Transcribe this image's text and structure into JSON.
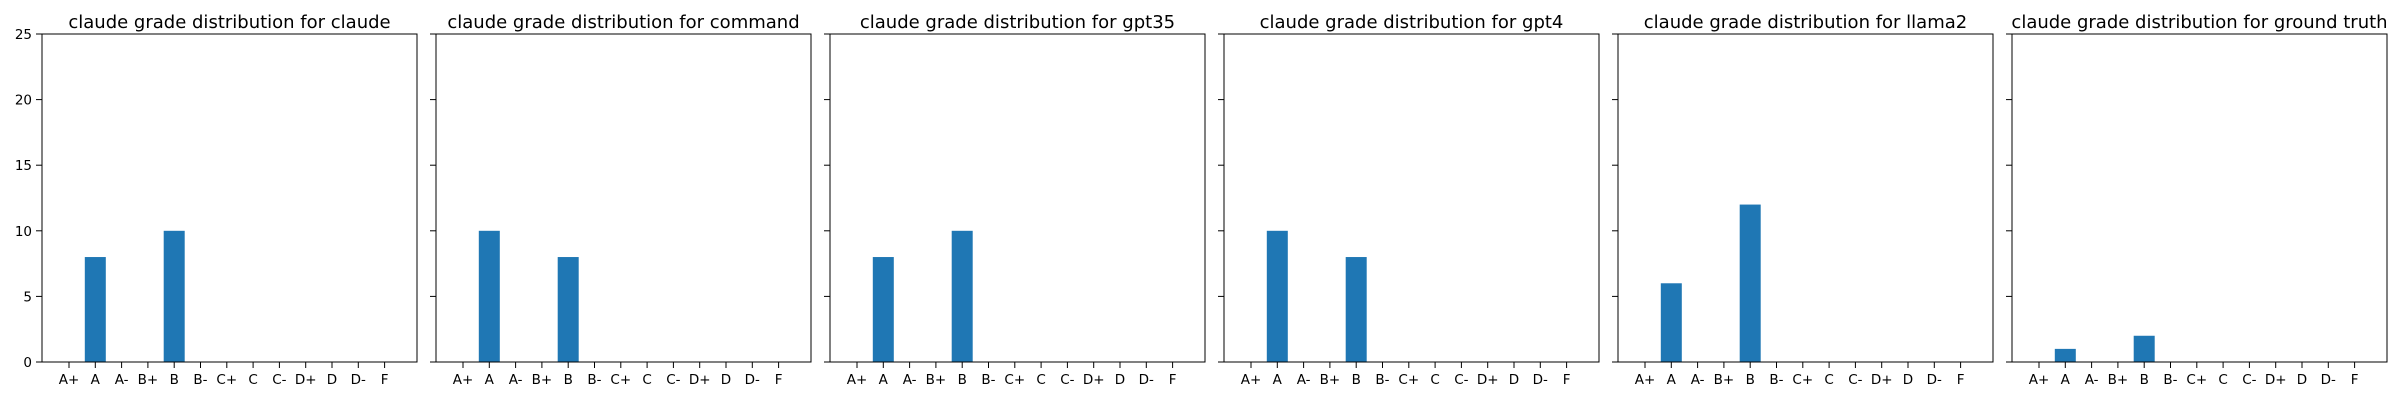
{
  "chart_data": [
    {
      "type": "bar",
      "title": "claude grade distribution for claude",
      "categories": [
        "A+",
        "A",
        "A-",
        "B+",
        "B",
        "B-",
        "C+",
        "C",
        "C-",
        "D+",
        "D",
        "D-",
        "F"
      ],
      "values": [
        0,
        8,
        0,
        0,
        10,
        0,
        0,
        0,
        0,
        0,
        0,
        0,
        0
      ],
      "ylim": [
        0,
        25
      ],
      "yticks": [
        0,
        5,
        10,
        15,
        20,
        25
      ],
      "color": "#1f77b4",
      "grid": false
    },
    {
      "type": "bar",
      "title": "claude grade distribution for command",
      "categories": [
        "A+",
        "A",
        "A-",
        "B+",
        "B",
        "B-",
        "C+",
        "C",
        "C-",
        "D+",
        "D",
        "D-",
        "F"
      ],
      "values": [
        0,
        10,
        0,
        0,
        8,
        0,
        0,
        0,
        0,
        0,
        0,
        0,
        0
      ],
      "ylim": [
        0,
        25
      ],
      "yticks": [
        0,
        5,
        10,
        15,
        20,
        25
      ],
      "color": "#1f77b4",
      "grid": false
    },
    {
      "type": "bar",
      "title": "claude grade distribution for gpt35",
      "categories": [
        "A+",
        "A",
        "A-",
        "B+",
        "B",
        "B-",
        "C+",
        "C",
        "C-",
        "D+",
        "D",
        "D-",
        "F"
      ],
      "values": [
        0,
        8,
        0,
        0,
        10,
        0,
        0,
        0,
        0,
        0,
        0,
        0,
        0
      ],
      "ylim": [
        0,
        25
      ],
      "yticks": [
        0,
        5,
        10,
        15,
        20,
        25
      ],
      "color": "#1f77b4",
      "grid": false
    },
    {
      "type": "bar",
      "title": "claude grade distribution for gpt4",
      "categories": [
        "A+",
        "A",
        "A-",
        "B+",
        "B",
        "B-",
        "C+",
        "C",
        "C-",
        "D+",
        "D",
        "D-",
        "F"
      ],
      "values": [
        0,
        10,
        0,
        0,
        8,
        0,
        0,
        0,
        0,
        0,
        0,
        0,
        0
      ],
      "ylim": [
        0,
        25
      ],
      "yticks": [
        0,
        5,
        10,
        15,
        20,
        25
      ],
      "color": "#1f77b4",
      "grid": false
    },
    {
      "type": "bar",
      "title": "claude grade distribution for llama2",
      "categories": [
        "A+",
        "A",
        "A-",
        "B+",
        "B",
        "B-",
        "C+",
        "C",
        "C-",
        "D+",
        "D",
        "D-",
        "F"
      ],
      "values": [
        0,
        6,
        0,
        0,
        12,
        0,
        0,
        0,
        0,
        0,
        0,
        0,
        0
      ],
      "ylim": [
        0,
        25
      ],
      "yticks": [
        0,
        5,
        10,
        15,
        20,
        25
      ],
      "color": "#1f77b4",
      "grid": false
    },
    {
      "type": "bar",
      "title": "claude grade distribution for ground truth",
      "categories": [
        "A+",
        "A",
        "A-",
        "B+",
        "B",
        "B-",
        "C+",
        "C",
        "C-",
        "D+",
        "D",
        "D-",
        "F"
      ],
      "values": [
        0,
        1,
        0,
        0,
        2,
        0,
        0,
        0,
        0,
        0,
        0,
        0,
        0
      ],
      "ylim": [
        0,
        25
      ],
      "yticks": [
        0,
        5,
        10,
        15,
        20,
        25
      ],
      "color": "#1f77b4",
      "grid": false
    }
  ]
}
